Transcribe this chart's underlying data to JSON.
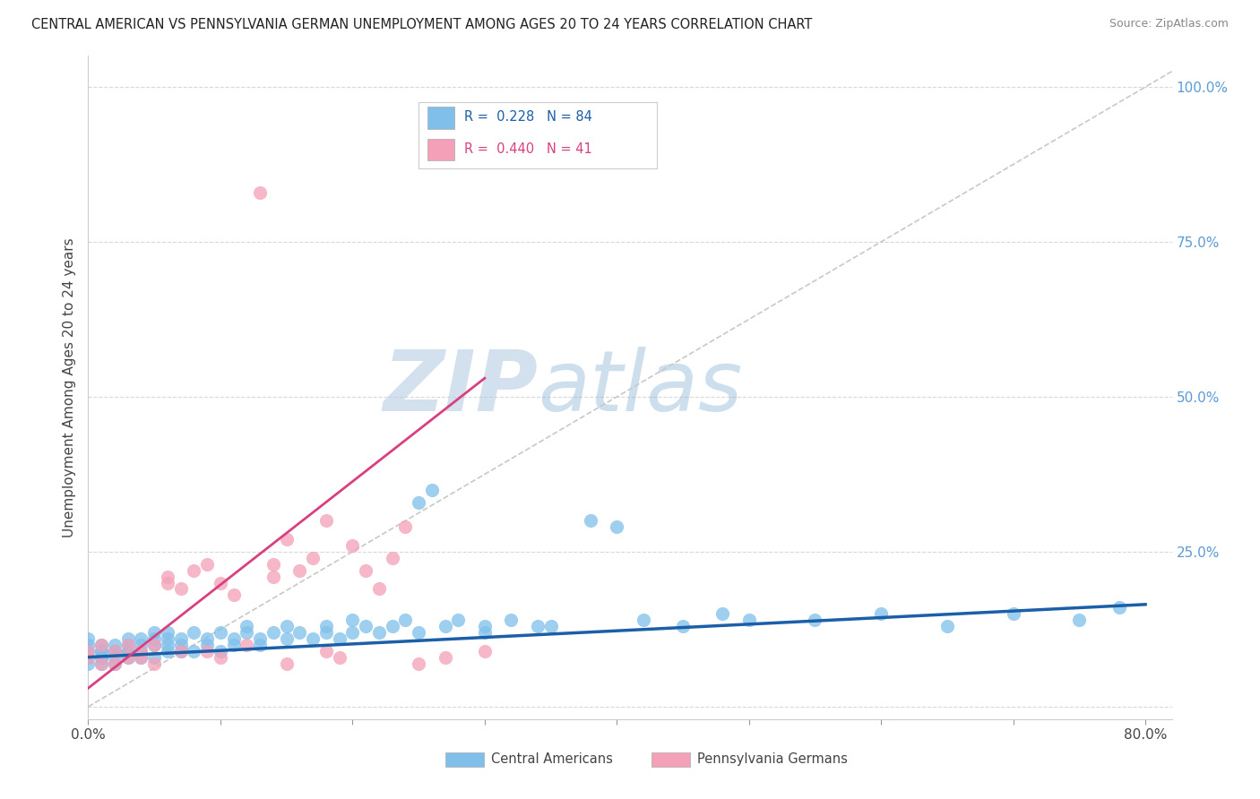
{
  "title": "CENTRAL AMERICAN VS PENNSYLVANIA GERMAN UNEMPLOYMENT AMONG AGES 20 TO 24 YEARS CORRELATION CHART",
  "source": "Source: ZipAtlas.com",
  "ylabel": "Unemployment Among Ages 20 to 24 years",
  "xlim": [
    0.0,
    0.82
  ],
  "ylim": [
    -0.02,
    1.05
  ],
  "xtick_positions": [
    0.0,
    0.1,
    0.2,
    0.3,
    0.4,
    0.5,
    0.6,
    0.7,
    0.8
  ],
  "xticklabels": [
    "0.0%",
    "",
    "",
    "",
    "",
    "",
    "",
    "",
    "80.0%"
  ],
  "ytick_positions": [
    0.0,
    0.25,
    0.5,
    0.75,
    1.0
  ],
  "yticklabels": [
    "",
    "25.0%",
    "50.0%",
    "75.0%",
    "100.0%"
  ],
  "blue_R": 0.228,
  "blue_N": 84,
  "pink_R": 0.44,
  "pink_N": 41,
  "blue_dot_color": "#7fbfea",
  "pink_dot_color": "#f4a0b8",
  "blue_line_color": "#1a5fa8",
  "pink_line_color": "#d94080",
  "ref_line_color": "#c8c8c8",
  "background_color": "#ffffff",
  "grid_color": "#d8d8d8",
  "legend_label_blue": "Central Americans",
  "legend_label_pink": "Pennsylvania Germans",
  "watermark_zip": "ZIP",
  "watermark_atlas": "atlas",
  "blue_line": [
    [
      0.0,
      0.08
    ],
    [
      0.8,
      0.165
    ]
  ],
  "pink_line": [
    [
      0.0,
      0.03
    ],
    [
      0.3,
      0.53
    ]
  ],
  "blue_scatter": [
    [
      0.0,
      0.09
    ],
    [
      0.0,
      0.1
    ],
    [
      0.0,
      0.08
    ],
    [
      0.0,
      0.07
    ],
    [
      0.0,
      0.11
    ],
    [
      0.01,
      0.09
    ],
    [
      0.01,
      0.08
    ],
    [
      0.01,
      0.1
    ],
    [
      0.01,
      0.07
    ],
    [
      0.01,
      0.09
    ],
    [
      0.01,
      0.08
    ],
    [
      0.02,
      0.09
    ],
    [
      0.02,
      0.08
    ],
    [
      0.02,
      0.1
    ],
    [
      0.02,
      0.07
    ],
    [
      0.02,
      0.09
    ],
    [
      0.03,
      0.1
    ],
    [
      0.03,
      0.09
    ],
    [
      0.03,
      0.08
    ],
    [
      0.03,
      0.11
    ],
    [
      0.03,
      0.09
    ],
    [
      0.04,
      0.1
    ],
    [
      0.04,
      0.08
    ],
    [
      0.04,
      0.11
    ],
    [
      0.04,
      0.09
    ],
    [
      0.05,
      0.1
    ],
    [
      0.05,
      0.12
    ],
    [
      0.05,
      0.08
    ],
    [
      0.05,
      0.11
    ],
    [
      0.06,
      0.1
    ],
    [
      0.06,
      0.09
    ],
    [
      0.06,
      0.11
    ],
    [
      0.06,
      0.12
    ],
    [
      0.07,
      0.09
    ],
    [
      0.07,
      0.11
    ],
    [
      0.07,
      0.1
    ],
    [
      0.08,
      0.09
    ],
    [
      0.08,
      0.12
    ],
    [
      0.09,
      0.11
    ],
    [
      0.09,
      0.1
    ],
    [
      0.1,
      0.12
    ],
    [
      0.1,
      0.09
    ],
    [
      0.11,
      0.11
    ],
    [
      0.11,
      0.1
    ],
    [
      0.12,
      0.12
    ],
    [
      0.12,
      0.13
    ],
    [
      0.13,
      0.11
    ],
    [
      0.13,
      0.1
    ],
    [
      0.14,
      0.12
    ],
    [
      0.15,
      0.11
    ],
    [
      0.15,
      0.13
    ],
    [
      0.16,
      0.12
    ],
    [
      0.17,
      0.11
    ],
    [
      0.18,
      0.12
    ],
    [
      0.18,
      0.13
    ],
    [
      0.19,
      0.11
    ],
    [
      0.2,
      0.12
    ],
    [
      0.2,
      0.14
    ],
    [
      0.21,
      0.13
    ],
    [
      0.22,
      0.12
    ],
    [
      0.23,
      0.13
    ],
    [
      0.24,
      0.14
    ],
    [
      0.25,
      0.33
    ],
    [
      0.26,
      0.35
    ],
    [
      0.27,
      0.13
    ],
    [
      0.28,
      0.14
    ],
    [
      0.3,
      0.13
    ],
    [
      0.32,
      0.14
    ],
    [
      0.34,
      0.13
    ],
    [
      0.38,
      0.3
    ],
    [
      0.4,
      0.29
    ],
    [
      0.42,
      0.14
    ],
    [
      0.45,
      0.13
    ],
    [
      0.48,
      0.15
    ],
    [
      0.5,
      0.14
    ],
    [
      0.55,
      0.14
    ],
    [
      0.6,
      0.15
    ],
    [
      0.65,
      0.13
    ],
    [
      0.7,
      0.15
    ],
    [
      0.75,
      0.14
    ],
    [
      0.78,
      0.16
    ],
    [
      0.25,
      0.12
    ],
    [
      0.3,
      0.12
    ],
    [
      0.35,
      0.13
    ]
  ],
  "pink_scatter": [
    [
      0.0,
      0.09
    ],
    [
      0.0,
      0.08
    ],
    [
      0.01,
      0.1
    ],
    [
      0.01,
      0.07
    ],
    [
      0.02,
      0.09
    ],
    [
      0.02,
      0.07
    ],
    [
      0.03,
      0.1
    ],
    [
      0.03,
      0.08
    ],
    [
      0.04,
      0.09
    ],
    [
      0.04,
      0.08
    ],
    [
      0.05,
      0.1
    ],
    [
      0.05,
      0.07
    ],
    [
      0.06,
      0.2
    ],
    [
      0.06,
      0.21
    ],
    [
      0.07,
      0.19
    ],
    [
      0.07,
      0.09
    ],
    [
      0.08,
      0.22
    ],
    [
      0.09,
      0.09
    ],
    [
      0.09,
      0.23
    ],
    [
      0.1,
      0.2
    ],
    [
      0.1,
      0.08
    ],
    [
      0.11,
      0.18
    ],
    [
      0.12,
      0.1
    ],
    [
      0.13,
      0.83
    ],
    [
      0.14,
      0.21
    ],
    [
      0.14,
      0.23
    ],
    [
      0.15,
      0.27
    ],
    [
      0.15,
      0.07
    ],
    [
      0.16,
      0.22
    ],
    [
      0.17,
      0.24
    ],
    [
      0.18,
      0.3
    ],
    [
      0.18,
      0.09
    ],
    [
      0.19,
      0.08
    ],
    [
      0.2,
      0.26
    ],
    [
      0.21,
      0.22
    ],
    [
      0.22,
      0.19
    ],
    [
      0.23,
      0.24
    ],
    [
      0.24,
      0.29
    ],
    [
      0.25,
      0.07
    ],
    [
      0.27,
      0.08
    ],
    [
      0.3,
      0.09
    ]
  ]
}
